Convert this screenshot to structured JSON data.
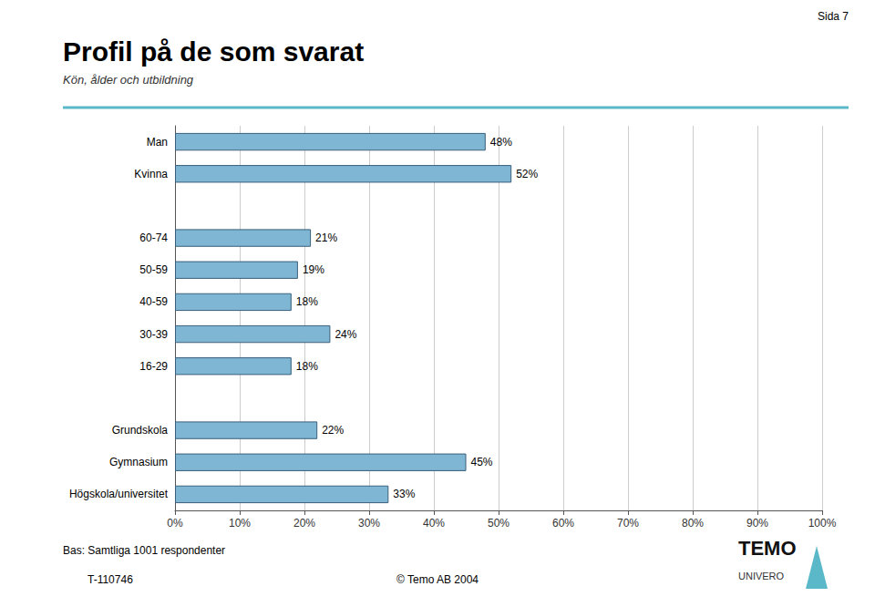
{
  "chart_data": {
    "type": "bar",
    "orientation": "horizontal",
    "title": "Profil på de som svarat",
    "subtitle": "Kön, ålder och utbildning",
    "annotations": [
      "Sida 7",
      "Bas: Samtliga 1001 respondenter",
      "T-110746",
      "© Temo AB 2004",
      "TEMO",
      "UNIVERO"
    ],
    "categories": [
      "Man",
      "Kvinna",
      null,
      "60-74",
      "50-59",
      "40-59",
      "30-39",
      "16-29",
      null,
      "Grundskola",
      "Gymnasium",
      "Högskola/universitet"
    ],
    "values": [
      48,
      52,
      null,
      21,
      19,
      18,
      24,
      18,
      null,
      22,
      45,
      33
    ],
    "value_labels": [
      "48%",
      "52%",
      null,
      "21%",
      "19%",
      "18%",
      "24%",
      "18%",
      null,
      "22%",
      "45%",
      "33%"
    ],
    "data_labels": true,
    "color": "#7EB6D4",
    "xlim": [
      0,
      100
    ],
    "xticks": [
      {
        "value": 0,
        "label": "0%"
      },
      {
        "value": 10,
        "label": "10%"
      },
      {
        "value": 20,
        "label": "20%"
      },
      {
        "value": 30,
        "label": "30%"
      },
      {
        "value": 40,
        "label": "40%"
      },
      {
        "value": 50,
        "label": "50%"
      },
      {
        "value": 60,
        "label": "60%"
      },
      {
        "value": 70,
        "label": "70%"
      },
      {
        "value": 80,
        "label": "80%"
      },
      {
        "value": 90,
        "label": "90%"
      },
      {
        "value": 100,
        "label": "100%"
      }
    ],
    "grid": true
  }
}
